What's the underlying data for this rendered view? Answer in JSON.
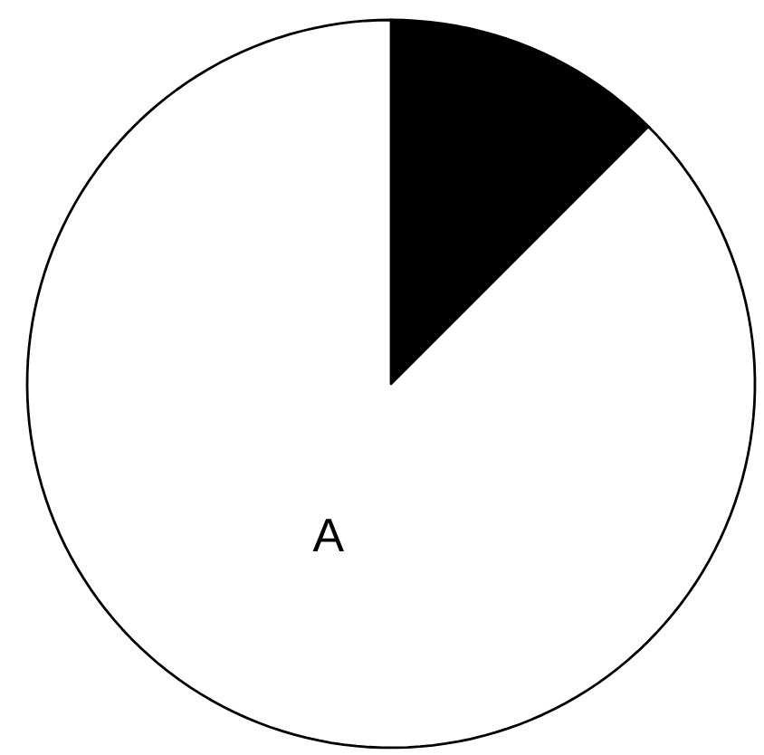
{
  "chart_data": {
    "type": "pie",
    "categories": [
      null,
      "A"
    ],
    "values": [
      12.5,
      87.5
    ],
    "colors": [
      "#000000",
      "#ffffff"
    ]
  }
}
